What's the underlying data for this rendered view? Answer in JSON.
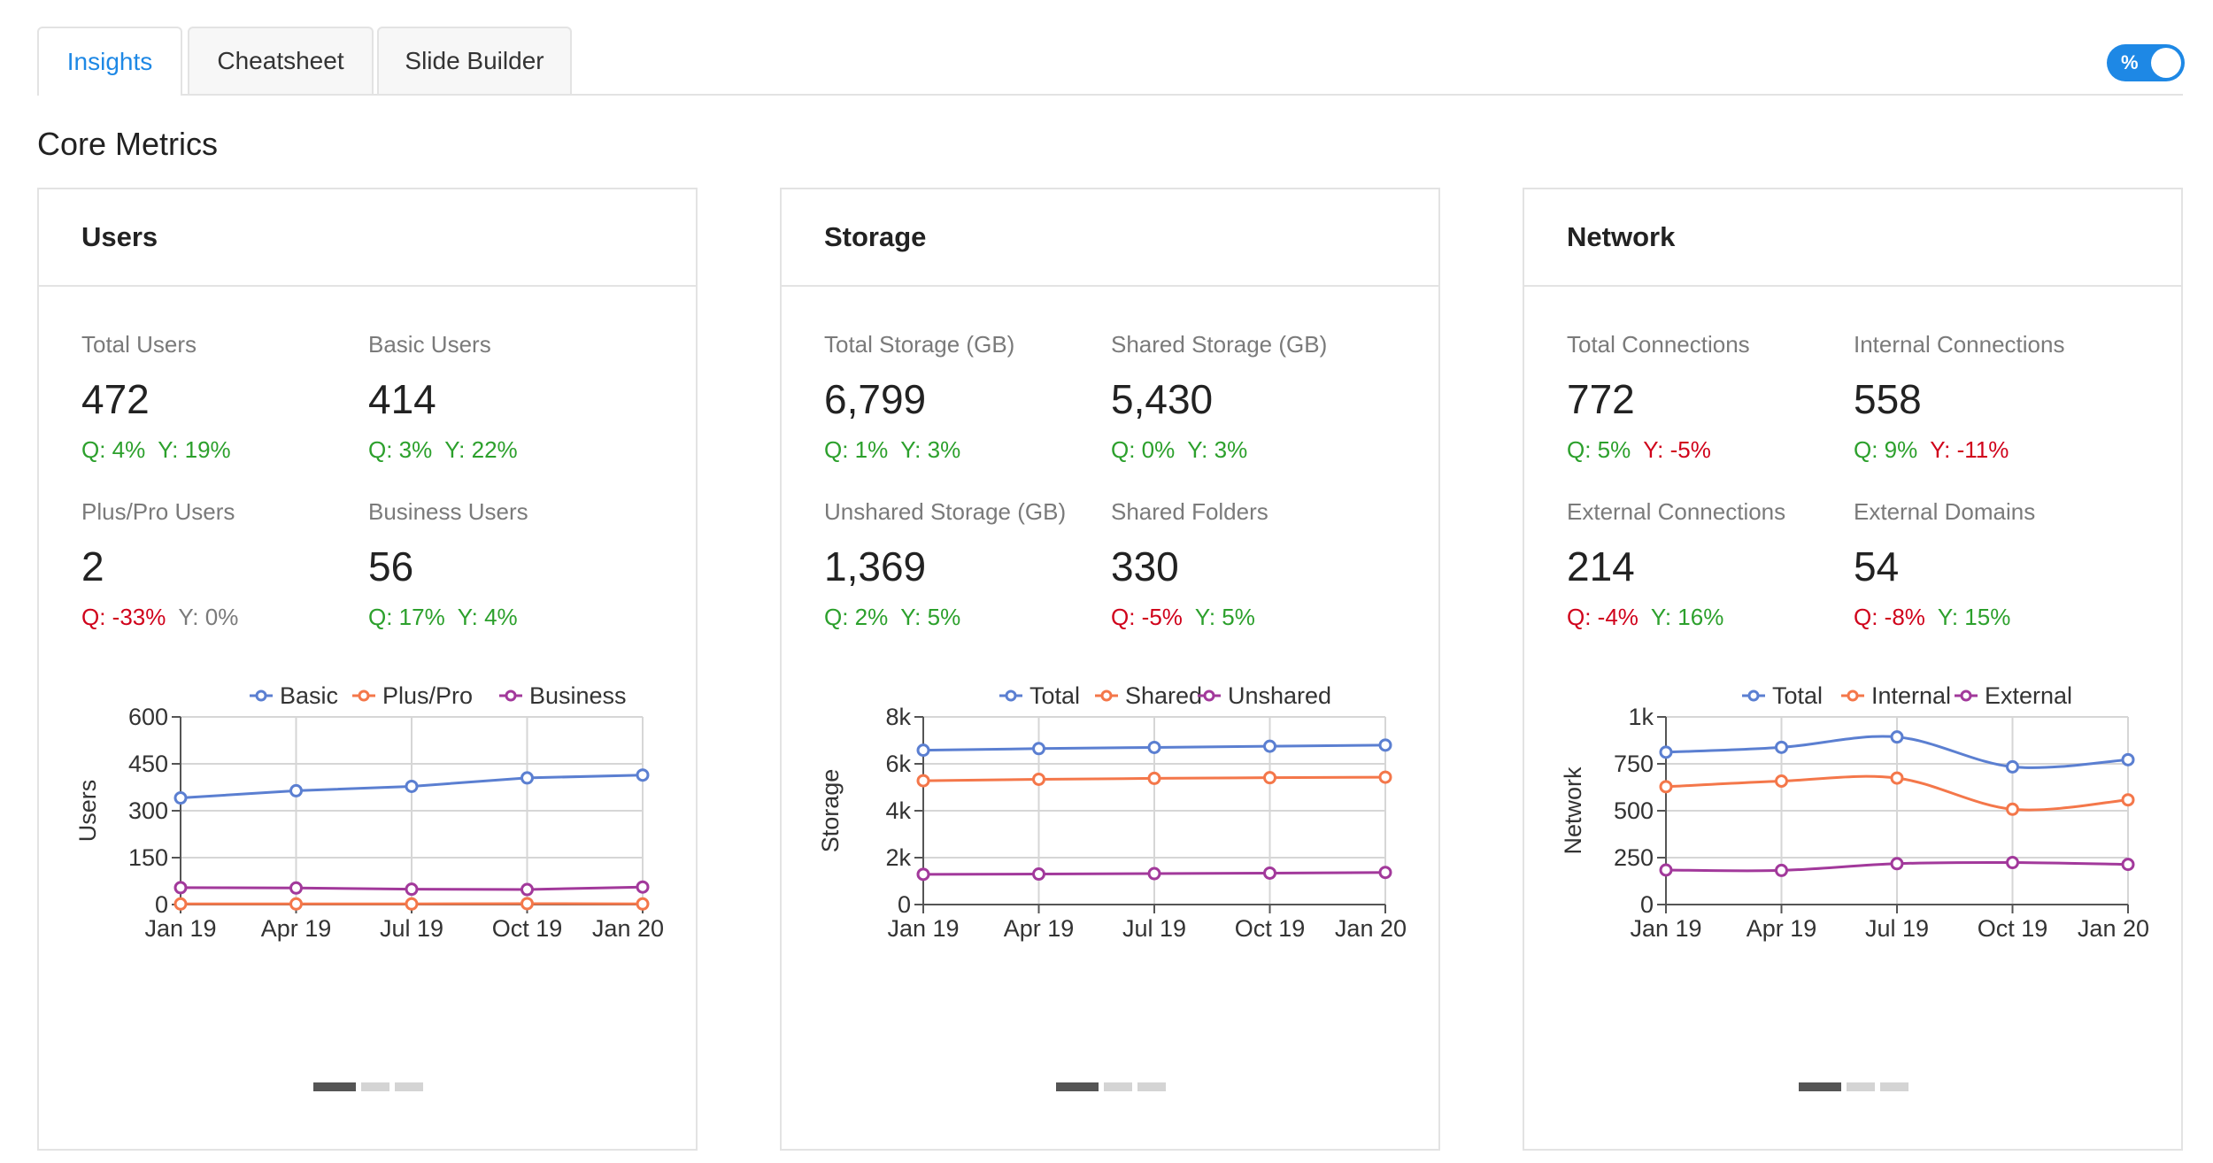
{
  "tabs": [
    {
      "label": "Insights",
      "active": true
    },
    {
      "label": "Cheatsheet",
      "active": false
    },
    {
      "label": "Slide Builder",
      "active": false
    }
  ],
  "percent_toggle": {
    "label": "%",
    "on": true
  },
  "section_title": "Core Metrics",
  "colors": {
    "blue": "#5b7fd1",
    "orange": "#f4774a",
    "purple": "#a2399b",
    "positive": "#2ca02c",
    "negative": "#d0021b"
  },
  "cards": [
    {
      "title": "Users",
      "metrics": [
        {
          "label": "Total Users",
          "value": "472",
          "q": "Q: 4%",
          "y": "Y: 19%",
          "q_status": "pos",
          "y_status": "pos"
        },
        {
          "label": "Basic Users",
          "value": "414",
          "q": "Q: 3%",
          "y": "Y: 22%",
          "q_status": "pos",
          "y_status": "pos"
        },
        {
          "label": "Plus/Pro Users",
          "value": "2",
          "q": "Q: -33%",
          "y": "Y: 0%",
          "q_status": "neg",
          "y_status": "neu"
        },
        {
          "label": "Business Users",
          "value": "56",
          "q": "Q: 17%",
          "y": "Y: 4%",
          "q_status": "pos",
          "y_status": "pos"
        }
      ],
      "pager": {
        "pages": 3,
        "active": 0
      }
    },
    {
      "title": "Storage",
      "metrics": [
        {
          "label": "Total Storage (GB)",
          "value": "6,799",
          "q": "Q: 1%",
          "y": "Y: 3%",
          "q_status": "pos",
          "y_status": "pos"
        },
        {
          "label": "Shared Storage (GB)",
          "value": "5,430",
          "q": "Q: 0%",
          "y": "Y: 3%",
          "q_status": "pos",
          "y_status": "pos"
        },
        {
          "label": "Unshared Storage (GB)",
          "value": "1,369",
          "q": "Q: 2%",
          "y": "Y: 5%",
          "q_status": "pos",
          "y_status": "pos"
        },
        {
          "label": "Shared Folders",
          "value": "330",
          "q": "Q: -5%",
          "y": "Y: 5%",
          "q_status": "neg",
          "y_status": "pos"
        }
      ],
      "pager": {
        "pages": 3,
        "active": 0
      }
    },
    {
      "title": "Network",
      "metrics": [
        {
          "label": "Total Connections",
          "value": "772",
          "q": "Q: 5%",
          "y": "Y: -5%",
          "q_status": "pos",
          "y_status": "neg"
        },
        {
          "label": "Internal Connections",
          "value": "558",
          "q": "Q: 9%",
          "y": "Y: -11%",
          "q_status": "pos",
          "y_status": "neg"
        },
        {
          "label": "External Connections",
          "value": "214",
          "q": "Q: -4%",
          "y": "Y: 16%",
          "q_status": "neg",
          "y_status": "pos"
        },
        {
          "label": "External Domains",
          "value": "54",
          "q": "Q: -8%",
          "y": "Y: 15%",
          "q_status": "neg",
          "y_status": "pos"
        }
      ],
      "pager": {
        "pages": 3,
        "active": 0
      }
    }
  ],
  "chart_data": [
    {
      "type": "line",
      "ylabel": "Users",
      "xlabel": "",
      "categories": [
        "Jan 19",
        "Apr 19",
        "Jul 19",
        "Oct 19",
        "Jan 20"
      ],
      "ylim": [
        0,
        600
      ],
      "yticks": [
        0,
        150,
        300,
        450,
        600
      ],
      "ytick_labels": [
        "0",
        "150",
        "300",
        "450",
        "600"
      ],
      "smooth": false,
      "grid": true,
      "legend": "top",
      "series": [
        {
          "name": "Basic",
          "color": "#5b7fd1",
          "values": [
            341,
            364,
            378,
            405,
            414
          ]
        },
        {
          "name": "Plus/Pro",
          "color": "#f4774a",
          "values": [
            2,
            2,
            2,
            3,
            2
          ]
        },
        {
          "name": "Business",
          "color": "#a2399b",
          "values": [
            54,
            53,
            49,
            48,
            56
          ]
        }
      ]
    },
    {
      "type": "line",
      "ylabel": "Storage",
      "xlabel": "",
      "categories": [
        "Jan 19",
        "Apr 19",
        "Jul 19",
        "Oct 19",
        "Jan 20"
      ],
      "ylim": [
        0,
        8000
      ],
      "yticks": [
        0,
        2000,
        4000,
        6000,
        8000
      ],
      "ytick_labels": [
        "0",
        "2k",
        "4k",
        "6k",
        "8k"
      ],
      "smooth": false,
      "grid": true,
      "legend": "top",
      "series": [
        {
          "name": "Total",
          "color": "#5b7fd1",
          "values": [
            6580,
            6650,
            6700,
            6750,
            6799
          ]
        },
        {
          "name": "Shared",
          "color": "#f4774a",
          "values": [
            5280,
            5340,
            5380,
            5410,
            5430
          ]
        },
        {
          "name": "Unshared",
          "color": "#a2399b",
          "values": [
            1290,
            1300,
            1320,
            1340,
            1369
          ]
        }
      ]
    },
    {
      "type": "line",
      "ylabel": "Network",
      "xlabel": "",
      "categories": [
        "Jan 19",
        "Apr 19",
        "Jul 19",
        "Oct 19",
        "Jan 20"
      ],
      "ylim": [
        0,
        1000
      ],
      "yticks": [
        0,
        250,
        500,
        750,
        1000
      ],
      "ytick_labels": [
        "0",
        "250",
        "500",
        "750",
        "1k"
      ],
      "smooth": true,
      "grid": true,
      "legend": "top",
      "series": [
        {
          "name": "Total",
          "color": "#5b7fd1",
          "values": [
            812,
            838,
            893,
            734,
            772
          ]
        },
        {
          "name": "Internal",
          "color": "#f4774a",
          "values": [
            628,
            658,
            674,
            508,
            558
          ]
        },
        {
          "name": "External",
          "color": "#a2399b",
          "values": [
            184,
            182,
            218,
            224,
            214
          ]
        }
      ]
    }
  ]
}
